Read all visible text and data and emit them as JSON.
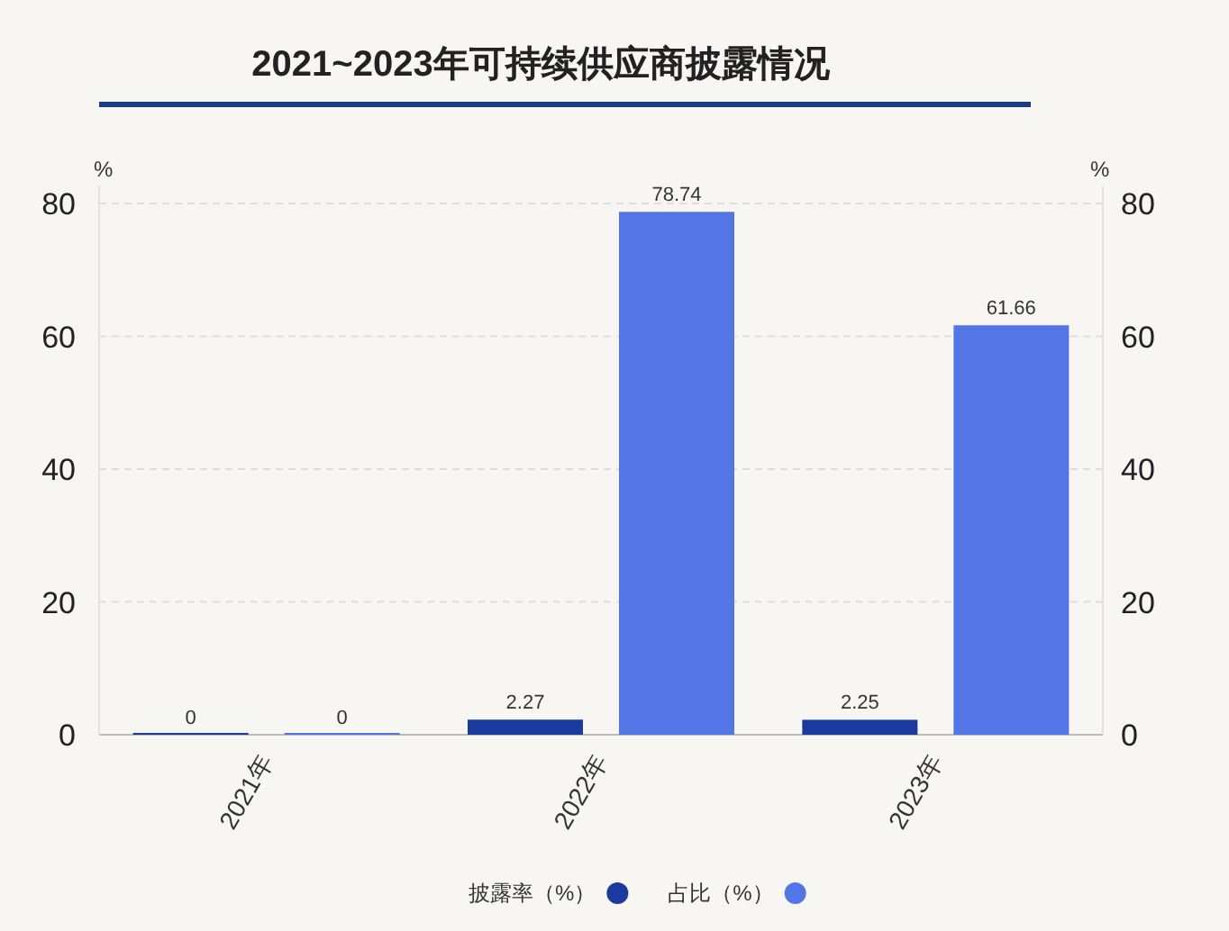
{
  "chart_data": {
    "type": "bar",
    "title": "2021~2023年可持续供应商披露情况",
    "categories": [
      "2021年",
      "2022年",
      "2023年"
    ],
    "series": [
      {
        "name": "披露率（%）",
        "color": "#1a3aa0",
        "values": [
          0,
          2.27,
          2.25
        ]
      },
      {
        "name": "占比（%）",
        "color": "#5475e6",
        "values": [
          0,
          78.74,
          61.66
        ]
      }
    ],
    "ylabel": "%",
    "y2label": "%",
    "ylim": [
      0,
      80
    ],
    "yticks": [
      0,
      20,
      40,
      60,
      80
    ],
    "y2lim": [
      0,
      80
    ],
    "y2ticks": [
      0,
      20,
      40,
      60,
      80
    ],
    "data_labels": true,
    "grid": "y",
    "legend": "bottom"
  }
}
